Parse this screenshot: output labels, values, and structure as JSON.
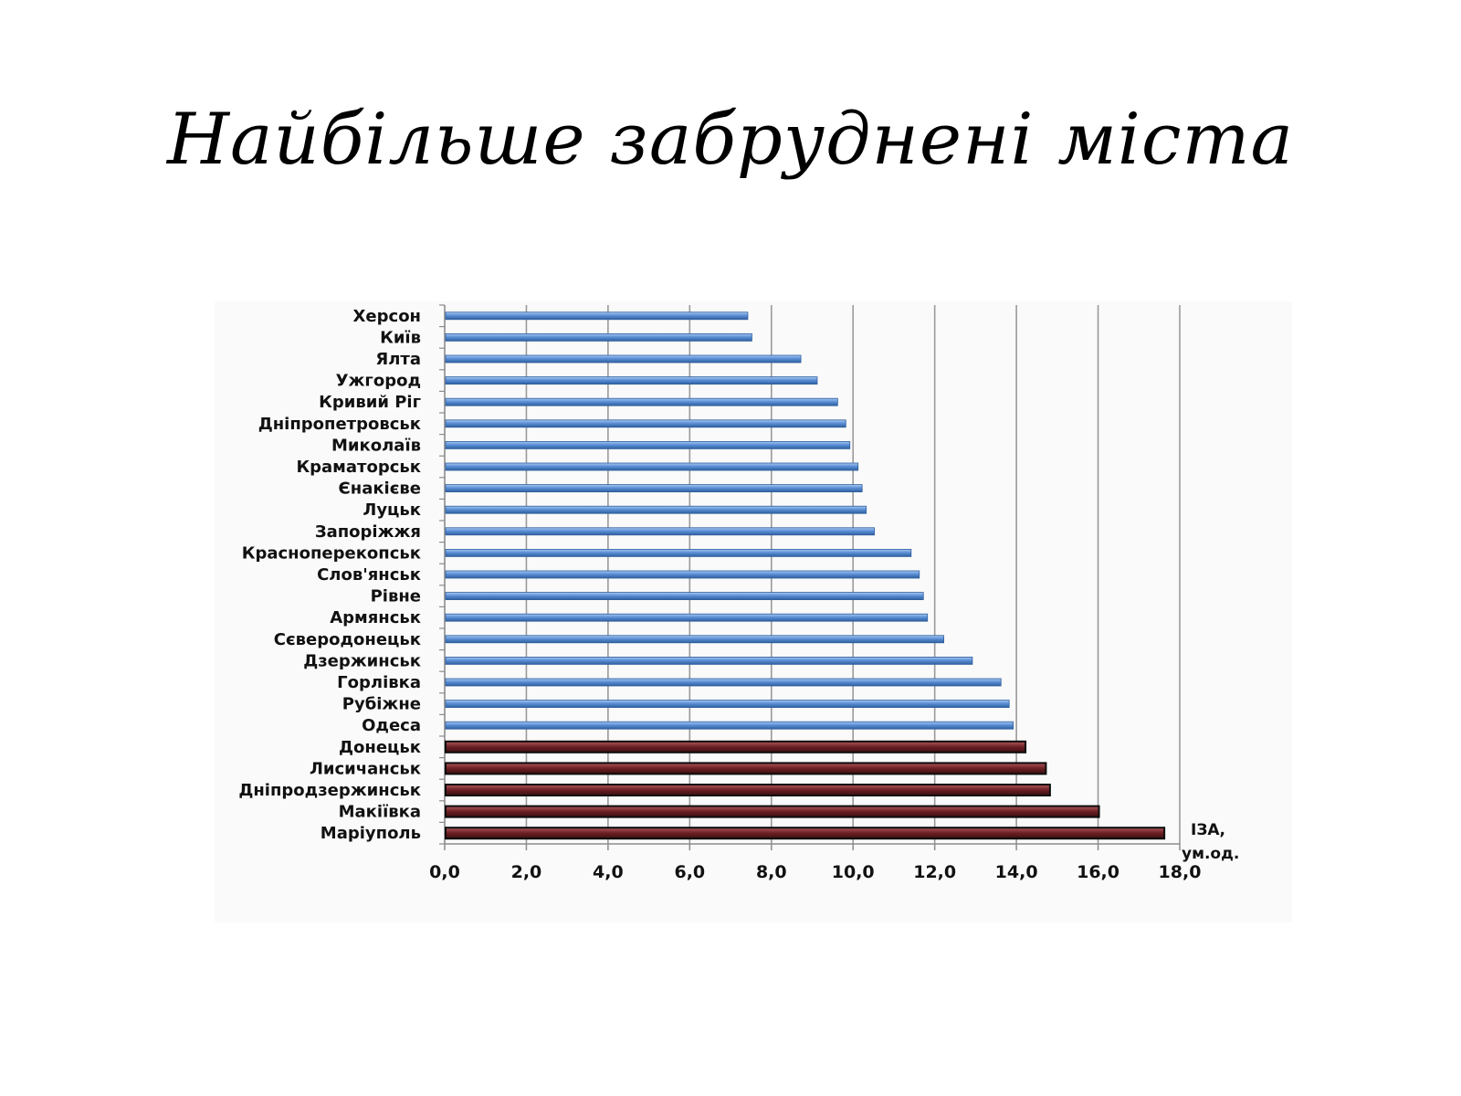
{
  "slide": {
    "title": "Найбільше забруднені міста"
  },
  "chart_data": {
    "type": "bar",
    "orientation": "horizontal",
    "title": "",
    "xlabel": "ІЗА, ум.од.",
    "xlabel_lines": [
      "ІЗА,",
      "ум.од."
    ],
    "ylabel": "",
    "xlim": [
      0,
      18
    ],
    "xtick_labels": [
      "0,0",
      "2,0",
      "4,0",
      "6,0",
      "8,0",
      "10,0",
      "12,0",
      "14,0",
      "16,0",
      "18,0"
    ],
    "grid": "vertical",
    "legend": "none",
    "categories": [
      "Херсон",
      "Київ",
      "Ялта",
      "Ужгород",
      "Кривий Ріг",
      "Дніпропетровськ",
      "Миколаїв",
      "Краматорськ",
      "Єнакієве",
      "Луцьк",
      "Запоріжжя",
      "Красноперекопськ",
      "Слов'янськ",
      "Рівне",
      "Армянськ",
      "Сєверодонецьк",
      "Дзержинськ",
      "Горлівка",
      "Рубіжне",
      "Одеса",
      "Донецьк",
      "Лисичанськ",
      "Дніпродзержинськ",
      "Макіївка",
      "Маріуполь"
    ],
    "values": [
      7.4,
      7.5,
      8.7,
      9.1,
      9.6,
      9.8,
      9.9,
      10.1,
      10.2,
      10.3,
      10.5,
      11.4,
      11.6,
      11.7,
      11.8,
      12.2,
      12.9,
      13.6,
      13.8,
      13.9,
      14.2,
      14.7,
      14.8,
      16.0,
      17.6
    ],
    "highlight_from_index": 20,
    "colors": {
      "normal": "#5b8fd6",
      "normal_edge": "#2f5f9e",
      "highlight": "#6b1f23",
      "highlight_edge": "#0d0d0d",
      "grid": "#9a9a9a",
      "axis": "#8c8c8c"
    }
  }
}
